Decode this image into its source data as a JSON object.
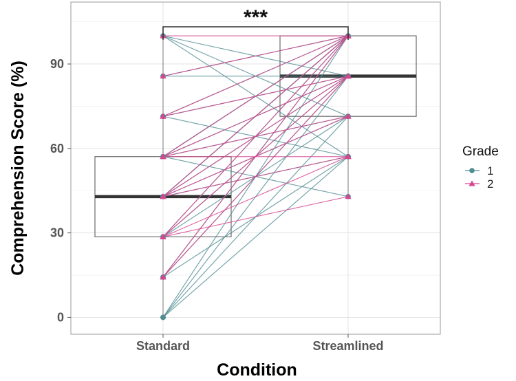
{
  "chart_data": {
    "type": "box-paired-lines",
    "xlabel": "Condition",
    "ylabel": "Comprehension Score (%)",
    "categories": [
      "Standard",
      "Streamlined"
    ],
    "ylim": [
      -6,
      112
    ],
    "yticks": [
      0,
      30,
      60,
      90
    ],
    "grid": true,
    "legend": {
      "title": "Grade",
      "placement": "right",
      "entries": [
        "1",
        "2"
      ]
    },
    "significance": {
      "label": "***",
      "between": [
        "Standard",
        "Streamlined"
      ]
    },
    "boxes": [
      {
        "category": "Standard",
        "min": 0,
        "q1": 28.6,
        "median": 42.9,
        "q3": 57.1,
        "max": 100
      },
      {
        "category": "Streamlined",
        "min": 42.9,
        "q1": 71.4,
        "median": 85.7,
        "q3": 100,
        "max": 100
      }
    ],
    "colors": {
      "grade1": "#4f8c92",
      "grade2": "#d6458f"
    },
    "series": [
      {
        "name": "1",
        "marker": "circle",
        "pairs": [
          [
            100,
            71.4
          ],
          [
            100,
            57.1
          ],
          [
            100,
            85.7
          ],
          [
            85.7,
            85.7
          ],
          [
            71.4,
            100
          ],
          [
            71.4,
            57.1
          ],
          [
            71.4,
            85.7
          ],
          [
            57.1,
            100
          ],
          [
            57.1,
            85.7
          ],
          [
            57.1,
            100
          ],
          [
            57.1,
            71.4
          ],
          [
            57.1,
            42.9
          ],
          [
            42.9,
            100
          ],
          [
            42.9,
            85.7
          ],
          [
            42.9,
            71.4
          ],
          [
            42.9,
            100
          ],
          [
            28.6,
            100
          ],
          [
            28.6,
            85.7
          ],
          [
            28.6,
            71.4
          ],
          [
            14.3,
            100
          ],
          [
            14.3,
            85.7
          ],
          [
            14.3,
            57.1
          ],
          [
            0,
            100
          ],
          [
            0,
            85.7
          ],
          [
            0,
            71.4
          ],
          [
            0,
            57.1
          ],
          [
            85.7,
            100
          ],
          [
            42.9,
            57.1
          ]
        ]
      },
      {
        "name": "2",
        "marker": "triangle",
        "pairs": [
          [
            100,
            100
          ],
          [
            85.7,
            100
          ],
          [
            71.4,
            100
          ],
          [
            71.4,
            85.7
          ],
          [
            57.1,
            100
          ],
          [
            57.1,
            57.1
          ],
          [
            57.1,
            85.7
          ],
          [
            42.9,
            100
          ],
          [
            42.9,
            85.7
          ],
          [
            42.9,
            57.1
          ],
          [
            28.6,
            100
          ],
          [
            28.6,
            85.7
          ],
          [
            28.6,
            57.1
          ],
          [
            28.6,
            42.9
          ],
          [
            14.3,
            85.7
          ],
          [
            14.3,
            100
          ],
          [
            42.9,
            71.4
          ],
          [
            57.1,
            71.4
          ]
        ]
      }
    ]
  }
}
